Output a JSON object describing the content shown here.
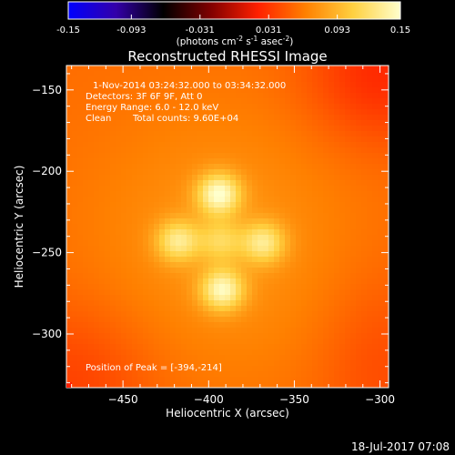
{
  "chart_data": {
    "type": "heatmap",
    "title": "Reconstructed RHESSI Image",
    "xlabel": "Heliocentric X (arcsec)",
    "ylabel": "Heliocentric Y (arcsec)",
    "xlim": [
      -483,
      -295
    ],
    "ylim": [
      -333,
      -135
    ],
    "x_ticks": [
      -450,
      -400,
      -350,
      -300
    ],
    "y_ticks": [
      -150,
      -200,
      -250,
      -300
    ],
    "colorbar": {
      "vmin": -0.15,
      "vmax": 0.15,
      "ticks": [
        "-0.15",
        "-0.093",
        "-0.031",
        "0.031",
        "0.093",
        "0.15"
      ],
      "label_main": "(photons cm",
      "label_sup1": "-2",
      "label_mid1": " s",
      "label_sup2": "-1",
      "label_mid2": " asec",
      "label_sup3": "-2",
      "label_end": ")",
      "stops": [
        "#0000ff",
        "#3300aa",
        "#000000",
        "#800000",
        "#ff2000",
        "#ff8000",
        "#ffd040",
        "#ffffcc"
      ]
    },
    "annotations": {
      "time_range": "1-Nov-2014 03:24:32.000 to 03:34:32.000",
      "detectors": "Detectors: 3F 6F 9F, Att 0",
      "energy": "Energy Range: 6.0 - 12.0 keV",
      "clean": "Clean",
      "total_counts": "Total counts: 9.60E+04",
      "peak": "Position of Peak = [-394,-214]"
    },
    "peak_position": [
      -394,
      -214
    ],
    "sources": [
      {
        "x": -394,
        "y": -214,
        "amp": 0.15
      },
      {
        "x": -418,
        "y": -243,
        "amp": 0.13
      },
      {
        "x": -368,
        "y": -244,
        "amp": 0.13
      },
      {
        "x": -392,
        "y": -273,
        "amp": 0.145
      },
      {
        "x": -393,
        "y": -243,
        "amp": 0.11
      }
    ],
    "background_level": 0.055
  },
  "footer": {
    "date": "18-Jul-2017 07:08"
  }
}
